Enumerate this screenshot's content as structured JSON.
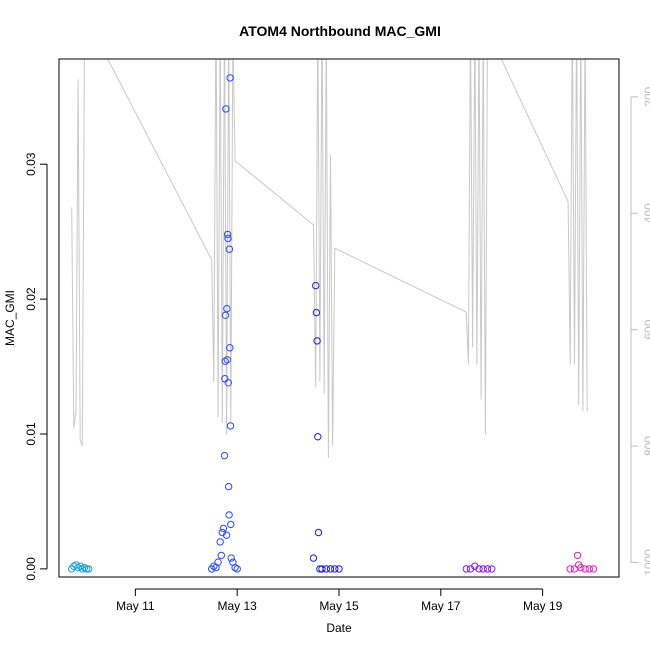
{
  "chart_data": {
    "type": "scatter",
    "title": "ATOM4 Northbound MAC_GMI",
    "xlabel": "Date",
    "ylabel": "MAC_GMI",
    "x_unit": "days",
    "xlim": [
      "2023-05-09 12:00",
      "2023-05-20 12:00"
    ],
    "ylim": [
      -0.0006,
      0.0378
    ],
    "x_ticks": [
      {
        "value": "2023-05-11 00:00",
        "label": "May 11"
      },
      {
        "value": "2023-05-13 00:00",
        "label": "May 13"
      },
      {
        "value": "2023-05-15 00:00",
        "label": "May 15"
      },
      {
        "value": "2023-05-17 00:00",
        "label": "May 17"
      },
      {
        "value": "2023-05-19 00:00",
        "label": "May 19"
      }
    ],
    "y_ticks": [
      {
        "value": 0.0,
        "label": "0.00"
      },
      {
        "value": 0.01,
        "label": "0.01"
      },
      {
        "value": 0.02,
        "label": "0.02"
      },
      {
        "value": 0.03,
        "label": "0.03"
      }
    ],
    "secondary_axis": {
      "side": "right",
      "color": "#bdbdbd",
      "inverted": true,
      "ylim": [
        135,
        1025
      ],
      "ticks": [
        {
          "value": 200,
          "label": "200"
        },
        {
          "value": 400,
          "label": "400"
        },
        {
          "value": 600,
          "label": "600"
        },
        {
          "value": 800,
          "label": "800"
        },
        {
          "value": 1000,
          "label": "1000"
        }
      ]
    },
    "grid": false,
    "series": [
      {
        "color": "#1a9edb",
        "points": [
          [
            "2023-05-09 18:00",
            0.0
          ],
          [
            "2023-05-09 19:00",
            0.0002
          ],
          [
            "2023-05-09 20:00",
            0.0003
          ],
          [
            "2023-05-09 21:00",
            0.0001
          ],
          [
            "2023-05-09 22:00",
            0.0002
          ],
          [
            "2023-05-09 23:00",
            0.0
          ],
          [
            "2023-05-10 00:00",
            0.0001
          ],
          [
            "2023-05-10 01:00",
            0.0
          ],
          [
            "2023-05-10 02:00",
            0.0
          ]
        ]
      },
      {
        "color": "#2a4bff",
        "points": [
          [
            "2023-05-12 12:00",
            0.0
          ],
          [
            "2023-05-12 13:00",
            0.0002
          ],
          [
            "2023-05-12 14:00",
            0.0001
          ],
          [
            "2023-05-12 15:00",
            0.0005
          ],
          [
            "2023-05-12 16:00",
            0.002
          ],
          [
            "2023-05-12 17:00",
            0.0027
          ],
          [
            "2023-05-12 17:30",
            0.003
          ],
          [
            "2023-05-12 18:00",
            0.0084
          ],
          [
            "2023-05-12 18:10",
            0.0141
          ],
          [
            "2023-05-12 18:20",
            0.0154
          ],
          [
            "2023-05-12 18:30",
            0.0188
          ],
          [
            "2023-05-12 18:40",
            0.0341
          ],
          [
            "2023-05-12 19:00",
            0.0025
          ],
          [
            "2023-05-12 19:10",
            0.0193
          ],
          [
            "2023-05-12 19:20",
            0.0155
          ],
          [
            "2023-05-12 19:30",
            0.0248
          ],
          [
            "2023-05-12 19:40",
            0.0245
          ],
          [
            "2023-05-12 19:50",
            0.0138
          ],
          [
            "2023-05-12 20:00",
            0.0061
          ],
          [
            "2023-05-12 20:10",
            0.004
          ],
          [
            "2023-05-12 20:20",
            0.0237
          ],
          [
            "2023-05-12 20:30",
            0.0164
          ],
          [
            "2023-05-12 20:40",
            0.0364
          ],
          [
            "2023-05-12 20:50",
            0.0106
          ],
          [
            "2023-05-12 21:00",
            0.0033
          ],
          [
            "2023-05-12 21:10",
            0.0008
          ],
          [
            "2023-05-12 22:00",
            0.0005
          ],
          [
            "2023-05-12 23:00",
            0.0001
          ],
          [
            "2023-05-13 00:00",
            0.0
          ],
          [
            "2023-05-12 16:30",
            0.001
          ]
        ]
      },
      {
        "color": "#1f1fd6",
        "points": [
          [
            "2023-05-14 12:00",
            0.0008
          ],
          [
            "2023-05-14 13:00",
            0.021
          ],
          [
            "2023-05-14 13:20",
            0.019
          ],
          [
            "2023-05-14 13:40",
            0.0169
          ],
          [
            "2023-05-14 14:00",
            0.0098
          ],
          [
            "2023-05-14 14:20",
            0.0027
          ],
          [
            "2023-05-14 15:00",
            0.0
          ],
          [
            "2023-05-14 16:00",
            0.0
          ],
          [
            "2023-05-14 18:00",
            0.0
          ],
          [
            "2023-05-14 20:00",
            0.0
          ],
          [
            "2023-05-14 22:00",
            0.0
          ],
          [
            "2023-05-15 00:00",
            0.0
          ]
        ]
      },
      {
        "color": "#8a1ae0",
        "points": [
          [
            "2023-05-17 12:00",
            0.0
          ],
          [
            "2023-05-17 14:00",
            0.0
          ],
          [
            "2023-05-17 16:00",
            0.0002
          ],
          [
            "2023-05-17 18:00",
            0.0
          ],
          [
            "2023-05-17 20:00",
            0.0
          ],
          [
            "2023-05-17 22:00",
            0.0
          ],
          [
            "2023-05-18 00:00",
            0.0
          ]
        ]
      },
      {
        "color": "#e61ec8",
        "points": [
          [
            "2023-05-19 13:00",
            0.0
          ],
          [
            "2023-05-19 15:00",
            0.0
          ],
          [
            "2023-05-19 16:30",
            0.001
          ],
          [
            "2023-05-19 17:00",
            0.0003
          ],
          [
            "2023-05-19 18:00",
            0.0001
          ],
          [
            "2023-05-19 20:00",
            0.0
          ],
          [
            "2023-05-19 22:00",
            0.0
          ],
          [
            "2023-05-20 00:00",
            0.0
          ]
        ]
      }
    ],
    "secondary_line": {
      "color": "#c8c8c8",
      "points": [
        [
          "2023-05-09 18:00",
          390
        ],
        [
          "2023-05-09 19:00",
          770
        ],
        [
          "2023-05-09 20:00",
          740
        ],
        [
          "2023-05-09 21:00",
          170
        ],
        [
          "2023-05-09 22:00",
          790
        ],
        [
          "2023-05-09 23:00",
          800
        ],
        [
          "2023-05-10 00:00",
          90
        ],
        [
          "2023-05-10 06:00",
          100
        ],
        [
          "2023-05-12 12:00",
          480
        ],
        [
          "2023-05-12 13:00",
          690
        ],
        [
          "2023-05-12 14:00",
          40
        ],
        [
          "2023-05-12 15:00",
          750
        ],
        [
          "2023-05-12 16:00",
          60
        ],
        [
          "2023-05-12 17:00",
          760
        ],
        [
          "2023-05-12 18:00",
          50
        ],
        [
          "2023-05-12 19:00",
          780
        ],
        [
          "2023-05-12 20:00",
          70
        ],
        [
          "2023-05-12 21:00",
          760
        ],
        [
          "2023-05-12 22:00",
          90
        ],
        [
          "2023-05-12 23:00",
          310
        ],
        [
          "2023-05-14 12:00",
          420
        ],
        [
          "2023-05-14 13:00",
          700
        ],
        [
          "2023-05-14 14:00",
          60
        ],
        [
          "2023-05-14 15:00",
          690
        ],
        [
          "2023-05-14 16:00",
          50
        ],
        [
          "2023-05-14 17:00",
          710
        ],
        [
          "2023-05-14 18:00",
          80
        ],
        [
          "2023-05-14 19:00",
          820
        ],
        [
          "2023-05-14 20:00",
          300
        ],
        [
          "2023-05-14 21:00",
          800
        ],
        [
          "2023-05-14 22:00",
          460
        ],
        [
          "2023-05-17 12:00",
          570
        ],
        [
          "2023-05-17 13:00",
          660
        ],
        [
          "2023-05-17 14:00",
          60
        ],
        [
          "2023-05-17 15:00",
          630
        ],
        [
          "2023-05-17 16:00",
          70
        ],
        [
          "2023-05-17 17:00",
          660
        ],
        [
          "2023-05-17 18:00",
          80
        ],
        [
          "2023-05-17 19:00",
          720
        ],
        [
          "2023-05-17 20:00",
          80
        ],
        [
          "2023-05-17 21:00",
          780
        ],
        [
          "2023-05-17 22:00",
          90
        ],
        [
          "2023-05-18 00:00",
          100
        ],
        [
          "2023-05-19 12:00",
          380
        ],
        [
          "2023-05-19 13:00",
          660
        ],
        [
          "2023-05-19 14:00",
          60
        ],
        [
          "2023-05-19 15:00",
          660
        ],
        [
          "2023-05-19 16:00",
          50
        ],
        [
          "2023-05-19 17:00",
          730
        ],
        [
          "2023-05-19 18:00",
          60
        ],
        [
          "2023-05-19 19:00",
          740
        ],
        [
          "2023-05-19 20:00",
          70
        ],
        [
          "2023-05-19 21:00",
          740
        ]
      ]
    }
  }
}
